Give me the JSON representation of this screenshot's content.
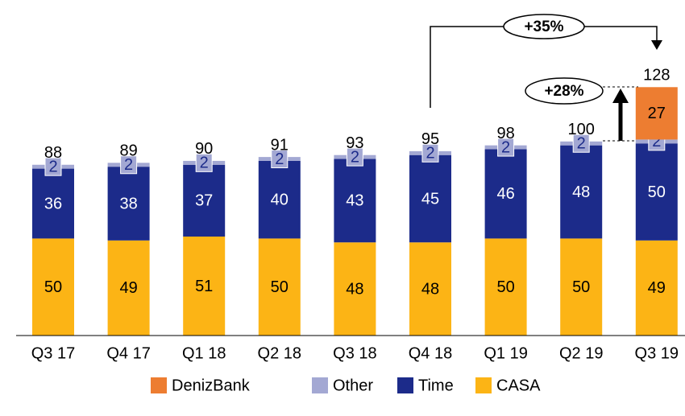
{
  "chart_data": {
    "type": "stacked_bar",
    "categories": [
      "Q3 17",
      "Q4 17",
      "Q1 18",
      "Q2 18",
      "Q3 18",
      "Q4 18",
      "Q1 19",
      "Q2 19",
      "Q3 19"
    ],
    "series": [
      {
        "name": "CASA",
        "color": "#fcb415",
        "values": [
          50,
          49,
          51,
          50,
          48,
          48,
          50,
          50,
          49
        ]
      },
      {
        "name": "Time",
        "color": "#1c2b8a",
        "values": [
          36,
          38,
          37,
          40,
          43,
          45,
          46,
          48,
          50
        ]
      },
      {
        "name": "Other",
        "color": "#a3a8d3",
        "values": [
          2,
          2,
          2,
          2,
          2,
          2,
          2,
          2,
          2
        ]
      },
      {
        "name": "DenizBank",
        "color": "#ed7d31",
        "values": [
          null,
          null,
          null,
          null,
          null,
          null,
          null,
          null,
          27
        ]
      }
    ],
    "totals": [
      88,
      89,
      90,
      91,
      93,
      95,
      98,
      100,
      128
    ],
    "annotations": [
      "+35%",
      "+28%"
    ],
    "ylim": [
      0,
      170
    ],
    "legend": "bottom"
  }
}
